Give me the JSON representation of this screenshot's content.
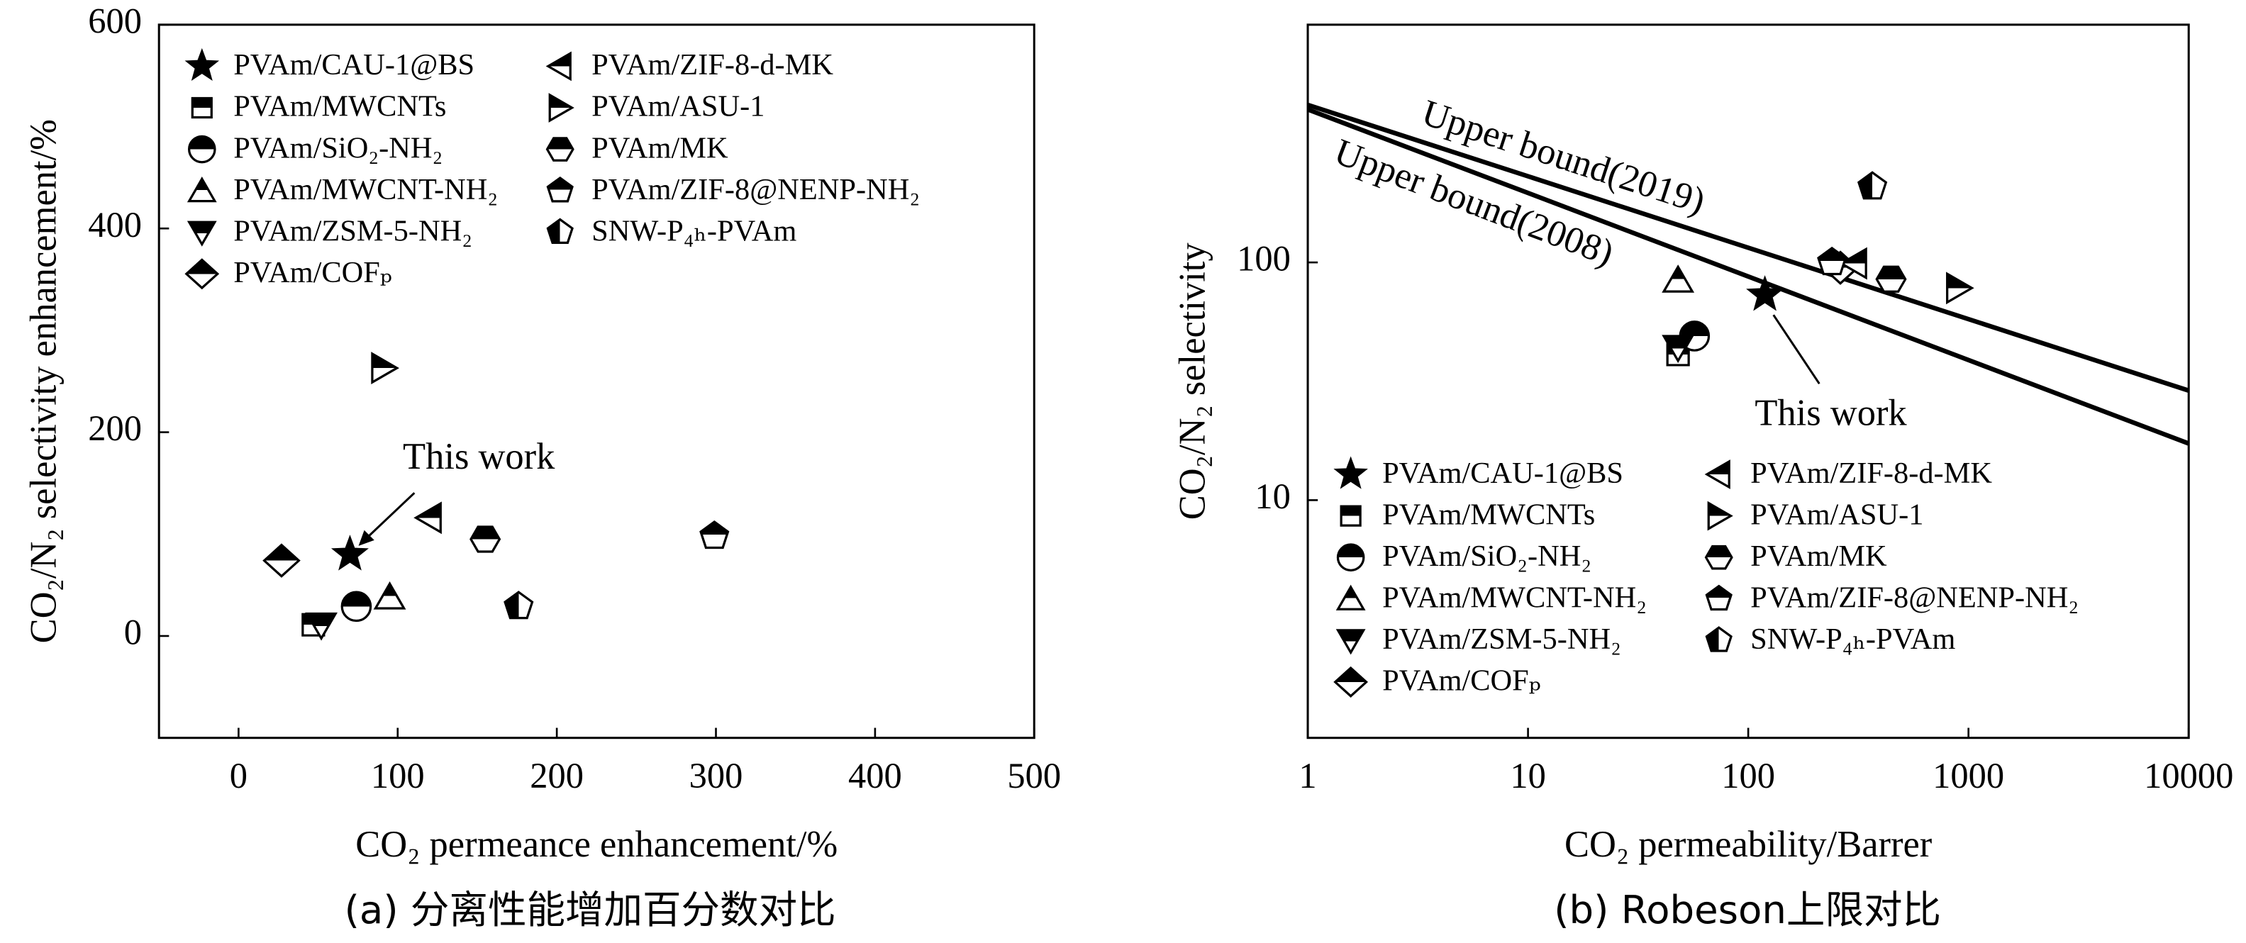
{
  "chart_data": [
    {
      "type": "scatter",
      "caption": "(a) 分离性能增加百分数对比",
      "xlabel": "CO₂ permeance enhancement/%",
      "ylabel": "CO₂/N₂ selectivity enhancement/%",
      "xlim": [
        -50,
        500
      ],
      "xticks": [
        0,
        100,
        200,
        300,
        400,
        500
      ],
      "ylim": [
        -100,
        600
      ],
      "yticks": [
        0,
        200,
        400,
        600
      ],
      "xscale": "linear",
      "yscale": "linear",
      "grid": false,
      "legend_loc": "upper left",
      "legend_columns": 2,
      "annotation": {
        "text": "This work"
      },
      "series": [
        {
          "name": "PVAm/CAU-1@BS",
          "color": "#000000",
          "marker": "star",
          "fill": "full",
          "x": [
            70
          ],
          "values": [
            80
          ]
        },
        {
          "name": "PVAm/MWCNTs",
          "color": "#000000",
          "marker": "square",
          "fill": "top",
          "x": [
            47
          ],
          "values": [
            11
          ]
        },
        {
          "name": "PVAm/SiO₂-NH₂",
          "color": "#000000",
          "marker": "circle",
          "fill": "top",
          "x": [
            74
          ],
          "values": [
            29
          ]
        },
        {
          "name": "PVAm/MWCNT-NH₂",
          "color": "#000000",
          "marker": "tri-up",
          "fill": "top",
          "x": [
            95
          ],
          "values": [
            38
          ]
        },
        {
          "name": "PVAm/ZSM-5-NH₂",
          "color": "#000000",
          "marker": "tri-down",
          "fill": "top",
          "x": [
            52
          ],
          "values": [
            11
          ]
        },
        {
          "name": "PVAm/COFₚ",
          "color": "#000000",
          "marker": "diamond",
          "fill": "top",
          "x": [
            27
          ],
          "values": [
            74
          ]
        },
        {
          "name": "PVAm/ZIF-8-d-MK",
          "color": "#000000",
          "marker": "tri-left",
          "fill": "top",
          "x": [
            120
          ],
          "values": [
            116
          ]
        },
        {
          "name": "PVAm/ASU-1",
          "color": "#000000",
          "marker": "tri-right",
          "fill": "top",
          "x": [
            91
          ],
          "values": [
            263
          ]
        },
        {
          "name": "PVAm/MK",
          "color": "#000000",
          "marker": "hexagon",
          "fill": "top",
          "x": [
            155
          ],
          "values": [
            95
          ]
        },
        {
          "name": "PVAm/ZIF-8@NENP-NH₂",
          "color": "#000000",
          "marker": "pentagon",
          "fill": "top",
          "x": [
            299
          ],
          "values": [
            98
          ]
        },
        {
          "name": "SNW-P₄ₕ-PVAm",
          "color": "#000000",
          "marker": "pentagon",
          "fill": "left",
          "x": [
            176
          ],
          "values": [
            29
          ]
        }
      ]
    },
    {
      "type": "scatter",
      "caption": "(b) Robeson上限对比",
      "xlabel": "CO₂ permeability/Barrer",
      "ylabel": "CO₂/N₂ selectivity",
      "xlim": [
        1,
        10000
      ],
      "xticks": [
        1,
        10,
        100,
        1000,
        10000
      ],
      "ylim": [
        1,
        1000
      ],
      "yticks": [
        10,
        100
      ],
      "xscale": "log",
      "yscale": "log",
      "grid": false,
      "legend_loc": "lower left",
      "legend_columns": 2,
      "annotation": {
        "text": "This work"
      },
      "series": [
        {
          "name": "PVAm/CAU-1@BS",
          "color": "#000000",
          "marker": "star",
          "fill": "full",
          "x": [
            119
          ],
          "values": [
            73
          ]
        },
        {
          "name": "PVAm/MWCNTs",
          "color": "#000000",
          "marker": "square",
          "fill": "top",
          "x": [
            48
          ],
          "values": [
            41
          ]
        },
        {
          "name": "PVAm/SiO₂-NH₂",
          "color": "#000000",
          "marker": "circle",
          "fill": "top",
          "x": [
            57
          ],
          "values": [
            49
          ]
        },
        {
          "name": "PVAm/MWCNT-NH₂",
          "color": "#000000",
          "marker": "tri-up",
          "fill": "top",
          "x": [
            48
          ],
          "values": [
            84
          ]
        },
        {
          "name": "PVAm/ZSM-5-NH₂",
          "color": "#000000",
          "marker": "tri-down",
          "fill": "top",
          "x": [
            48
          ],
          "values": [
            44
          ]
        },
        {
          "name": "PVAm/COFₚ",
          "color": "#000000",
          "marker": "diamond",
          "fill": "top",
          "x": [
            262
          ],
          "values": [
            95
          ]
        },
        {
          "name": "PVAm/ZIF-8-d-MK",
          "color": "#000000",
          "marker": "tri-left",
          "fill": "top",
          "x": [
            305
          ],
          "values": [
            99
          ]
        },
        {
          "name": "PVAm/ASU-1",
          "color": "#000000",
          "marker": "tri-right",
          "fill": "top",
          "x": [
            899
          ],
          "values": [
            78
          ]
        },
        {
          "name": "PVAm/MK",
          "color": "#000000",
          "marker": "hexagon",
          "fill": "top",
          "x": [
            445
          ],
          "values": [
            85
          ]
        },
        {
          "name": "PVAm/ZIF-8@NENP-NH₂",
          "color": "#000000",
          "marker": "pentagon",
          "fill": "top",
          "x": [
            240
          ],
          "values": [
            100
          ]
        },
        {
          "name": "SNW-P₄ₕ-PVAm",
          "color": "#000000",
          "marker": "pentagon",
          "fill": "left",
          "x": [
            366
          ],
          "values": [
            208
          ]
        }
      ],
      "lines": [
        {
          "name": "Upper bound(2019)",
          "color": "#000000",
          "label_position": "above",
          "x": [
            1,
            10000
          ],
          "values": [
            460,
            28.9
          ]
        },
        {
          "name": "Upper bound(2008)",
          "color": "#000000",
          "label_position": "below",
          "x": [
            1,
            10000
          ],
          "values": [
            440,
            17.3
          ]
        }
      ]
    }
  ]
}
